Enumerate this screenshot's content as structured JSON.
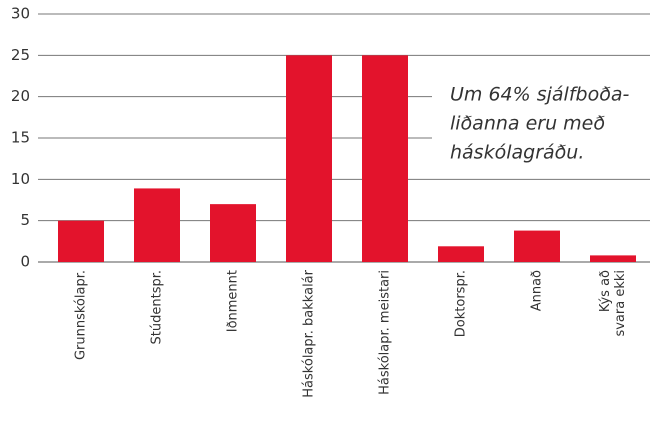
{
  "chart_data": {
    "type": "bar",
    "categories": [
      "Grunnskólapr.",
      "Stúdentspr.",
      "Iðnmennt",
      "Háskólapr. bakkalár",
      "Háskólapr. meistari",
      "Doktorspr.",
      "Annað",
      [
        "Kýs að",
        "svara ekki"
      ]
    ],
    "values": [
      5,
      8.9,
      7,
      25,
      25,
      1.9,
      3.8,
      0.8
    ],
    "color": "#e3132c",
    "ylim": [
      0,
      30
    ],
    "yticks": [
      0,
      5,
      10,
      15,
      20,
      25,
      30
    ],
    "grid": true,
    "annotation": [
      "Um 64% sjálfboða-",
      "liðanna eru með",
      "háskólagráðu."
    ]
  }
}
